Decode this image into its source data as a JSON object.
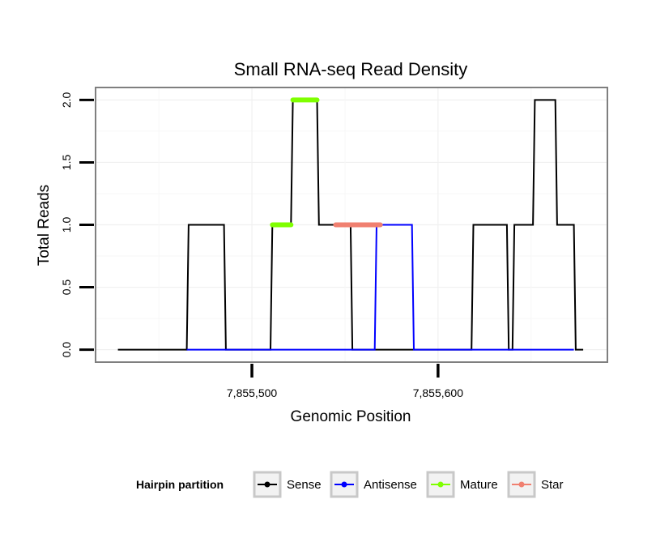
{
  "chart_data": {
    "type": "line",
    "title": "Small RNA-seq Read Density",
    "xlabel": "Genomic Position",
    "ylabel": "Total Reads",
    "xlim": [
      7855416,
      7855691
    ],
    "ylim": [
      -0.1,
      2.1
    ],
    "x_ticks": [
      7855500,
      7855600
    ],
    "x_tick_labels": [
      "7,855,500",
      "7,855,600"
    ],
    "y_ticks": [
      0.0,
      0.5,
      1.0,
      1.5,
      2.0
    ],
    "y_tick_labels": [
      "0.0",
      "0.5",
      "1.0",
      "1.5",
      "2.0"
    ],
    "grid": true,
    "legend": {
      "title": "Hairpin partition",
      "position": "bottom",
      "entries": [
        "Sense",
        "Antisense",
        "Mature",
        "Star"
      ]
    },
    "series": [
      {
        "name": "Sense",
        "color": "#000000",
        "style": "line",
        "x": [
          7855428,
          7855465,
          7855466,
          7855485,
          7855486,
          7855510,
          7855511,
          7855521,
          7855522,
          7855535,
          7855536,
          7855544,
          7855545,
          7855553,
          7855554,
          7855618,
          7855619,
          7855637,
          7855638,
          7855640,
          7855641,
          7855651,
          7855652,
          7855663,
          7855664,
          7855673,
          7855674,
          7855678
        ],
        "values": [
          0,
          0,
          1,
          1,
          0,
          0,
          1,
          1,
          2,
          2,
          1,
          1,
          1,
          1,
          0,
          0,
          1,
          1,
          0,
          0,
          1,
          1,
          2,
          2,
          1,
          1,
          0,
          0
        ]
      },
      {
        "name": "Antisense",
        "color": "#0000ff",
        "style": "line",
        "x": [
          7855465,
          7855566,
          7855567,
          7855586,
          7855587,
          7855673
        ],
        "values": [
          0,
          0,
          1,
          1,
          0,
          0
        ]
      },
      {
        "name": "Mature",
        "color": "#7fff00",
        "style": "segment",
        "segments": [
          {
            "x": [
              7855511,
              7855521
            ],
            "y": 1
          },
          {
            "x": [
              7855522,
              7855535
            ],
            "y": 2
          }
        ]
      },
      {
        "name": "Star",
        "color": "#f08070",
        "style": "segment",
        "segments": [
          {
            "x": [
              7855545,
              7855569
            ],
            "y": 1
          }
        ]
      }
    ]
  }
}
